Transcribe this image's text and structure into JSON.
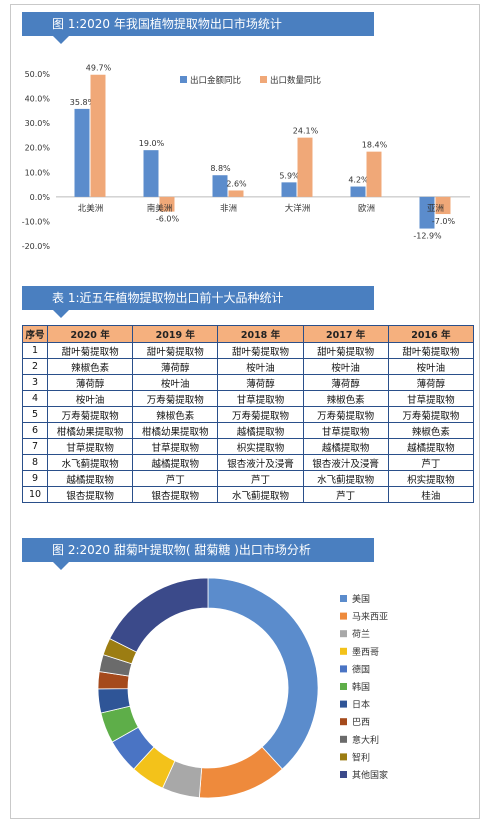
{
  "chart1": {
    "title": "图 1:2020 年我国植物提取物出口市场统计",
    "chart_data": {
      "type": "bar",
      "categories": [
        "北美洲",
        "南美洲",
        "非洲",
        "大洋洲",
        "欧洲",
        "亚洲"
      ],
      "series": [
        {
          "name": "出口金额同比",
          "values": [
            35.8,
            19.0,
            8.8,
            5.9,
            4.2,
            -12.9
          ],
          "labels": [
            "35.8%",
            "19.0%",
            "8.8%",
            "5.9%",
            "4.2%",
            "-12.9%"
          ],
          "color": "#5b8ccc"
        },
        {
          "name": "出口数量同比",
          "values": [
            49.7,
            -6.0,
            2.6,
            24.1,
            18.4,
            -7.0
          ],
          "labels": [
            "49.7%",
            "-6.0%",
            "2.6%",
            "24.1%",
            "18.4%",
            "-7.0%"
          ],
          "color": "#f0a878"
        }
      ],
      "ylim": [
        -20,
        50
      ],
      "yticks": [
        "50.0%",
        "40.0%",
        "30.0%",
        "20.0%",
        "10.0%",
        "0.0%",
        "-10.0%",
        "-20.0%"
      ],
      "ytick_values": [
        50,
        40,
        30,
        20,
        10,
        0,
        -10,
        -20
      ],
      "legend_position": "top-right",
      "grid": false
    }
  },
  "table1": {
    "title": "表 1:近五年植物提取物出口前十大品种统计",
    "headers": [
      "序号",
      "2020 年",
      "2019 年",
      "2018 年",
      "2017 年",
      "2016 年"
    ],
    "rows": [
      [
        "1",
        "甜叶菊提取物",
        "甜叶菊提取物",
        "甜叶菊提取物",
        "甜叶菊提取物",
        "甜叶菊提取物"
      ],
      [
        "2",
        "辣椒色素",
        "薄荷醇",
        "桉叶油",
        "桉叶油",
        "桉叶油"
      ],
      [
        "3",
        "薄荷醇",
        "桉叶油",
        "薄荷醇",
        "薄荷醇",
        "薄荷醇"
      ],
      [
        "4",
        "桉叶油",
        "万寿菊提取物",
        "甘草提取物",
        "辣椒色素",
        "甘草提取物"
      ],
      [
        "5",
        "万寿菊提取物",
        "辣椒色素",
        "万寿菊提取物",
        "万寿菊提取物",
        "万寿菊提取物"
      ],
      [
        "6",
        "柑橘幼果提取物",
        "柑橘幼果提取物",
        "越橘提取物",
        "甘草提取物",
        "辣椒色素"
      ],
      [
        "7",
        "甘草提取物",
        "甘草提取物",
        "枳实提取物",
        "越橘提取物",
        "越橘提取物"
      ],
      [
        "8",
        "水飞蓟提取物",
        "越橘提取物",
        "银杏液汁及浸膏",
        "银杏液汁及浸膏",
        "芦丁"
      ],
      [
        "9",
        "越橘提取物",
        "芦丁",
        "芦丁",
        "水飞蓟提取物",
        "枳实提取物"
      ],
      [
        "10",
        "银杏提取物",
        "银杏提取物",
        "水飞蓟提取物",
        "芦丁",
        "桂油"
      ]
    ]
  },
  "chart2": {
    "title": "图 2:2020 甜菊叶提取物( 甜菊糖 )出口市场分析",
    "chart_data": {
      "type": "pie",
      "style": "donut",
      "labels": [
        "美国",
        "马来西亚",
        "荷兰",
        "墨西哥",
        "德国",
        "韩国",
        "日本",
        "巴西",
        "意大利",
        "智利",
        "其他国家"
      ],
      "values": [
        38,
        13,
        5.5,
        5,
        5,
        4.5,
        3.5,
        2.5,
        2.5,
        2.5,
        17.5
      ],
      "colors": [
        "#5b8ccc",
        "#ee8a3c",
        "#a8a8a8",
        "#f3c21a",
        "#4a74c4",
        "#5eae49",
        "#2f5597",
        "#a54a1c",
        "#6b6b6b",
        "#9c7d12",
        "#3b4a8a"
      ],
      "legend_position": "right"
    }
  }
}
